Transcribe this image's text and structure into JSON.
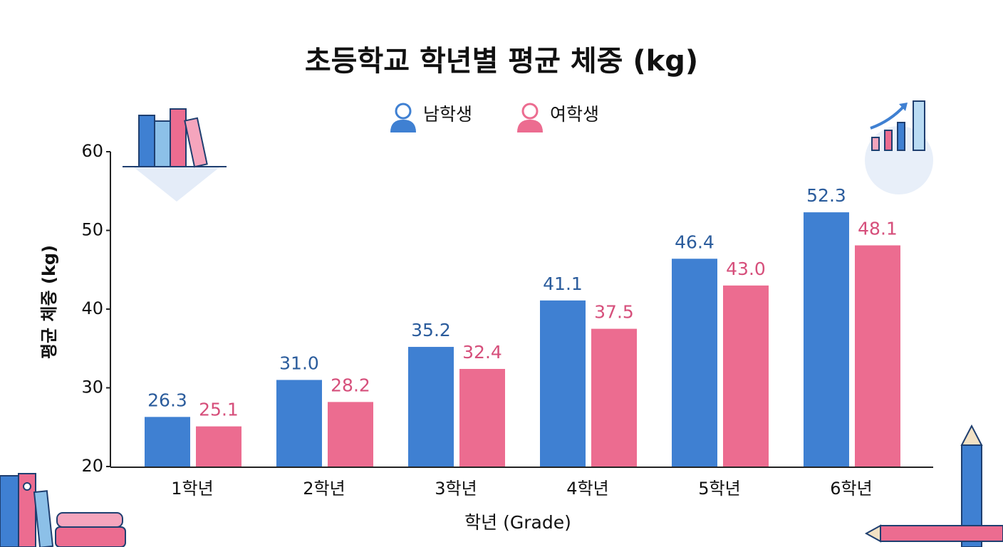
{
  "chart_data": {
    "type": "bar",
    "title": "초등학교 학년별 평균 체중 (kg)",
    "x_label": "학년 (Grade)",
    "y_label": "평균 체중 (kg)",
    "categories": [
      "1학년",
      "2학년",
      "3학년",
      "4학년",
      "5학년",
      "6학년"
    ],
    "series": [
      {
        "name": "남학생",
        "color": "#3f80d2",
        "label_color": "#2b5c9c",
        "values": [
          26.3,
          31.0,
          35.2,
          41.1,
          46.4,
          52.3
        ],
        "value_labels": [
          "26.3",
          "31.0",
          "35.2",
          "41.1",
          "46.4",
          "52.3"
        ]
      },
      {
        "name": "여학생",
        "color": "#ec6c90",
        "label_color": "#d64f7b",
        "values": [
          25.1,
          28.2,
          32.4,
          37.5,
          43.0,
          48.1
        ],
        "value_labels": [
          "25.1",
          "28.2",
          "32.4",
          "37.5",
          "43.0",
          "48.1"
        ]
      }
    ],
    "ylim": [
      20,
      60
    ],
    "yticks": [
      20,
      30,
      40,
      50,
      60
    ],
    "grid": false
  }
}
